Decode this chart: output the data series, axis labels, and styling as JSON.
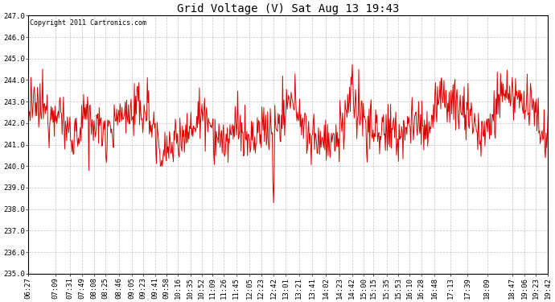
{
  "title": "Grid Voltage (V) Sat Aug 13 19:43",
  "copyright": "Copyright 2011 Cartronics.com",
  "line_color": "#dd0000",
  "bg_color": "#ffffff",
  "plot_bg_color": "#ffffff",
  "grid_color": "#bbbbbb",
  "ylim": [
    235.0,
    247.0
  ],
  "ytick_min": 235.0,
  "ytick_max": 247.0,
  "ytick_step": 1.0,
  "x_labels": [
    "06:27",
    "07:09",
    "07:31",
    "07:49",
    "08:08",
    "08:25",
    "08:46",
    "09:05",
    "09:23",
    "09:41",
    "09:58",
    "10:16",
    "10:35",
    "10:52",
    "11:09",
    "11:26",
    "11:45",
    "12:05",
    "12:23",
    "12:42",
    "13:01",
    "13:21",
    "13:41",
    "14:02",
    "14:23",
    "14:42",
    "15:00",
    "15:15",
    "15:35",
    "15:53",
    "16:10",
    "16:28",
    "16:48",
    "17:13",
    "17:39",
    "18:09",
    "18:47",
    "19:06",
    "19:23",
    "19:42"
  ],
  "title_fontsize": 10,
  "tick_fontsize": 6.5,
  "copyright_fontsize": 6,
  "seed": 12345,
  "n_points": 800
}
